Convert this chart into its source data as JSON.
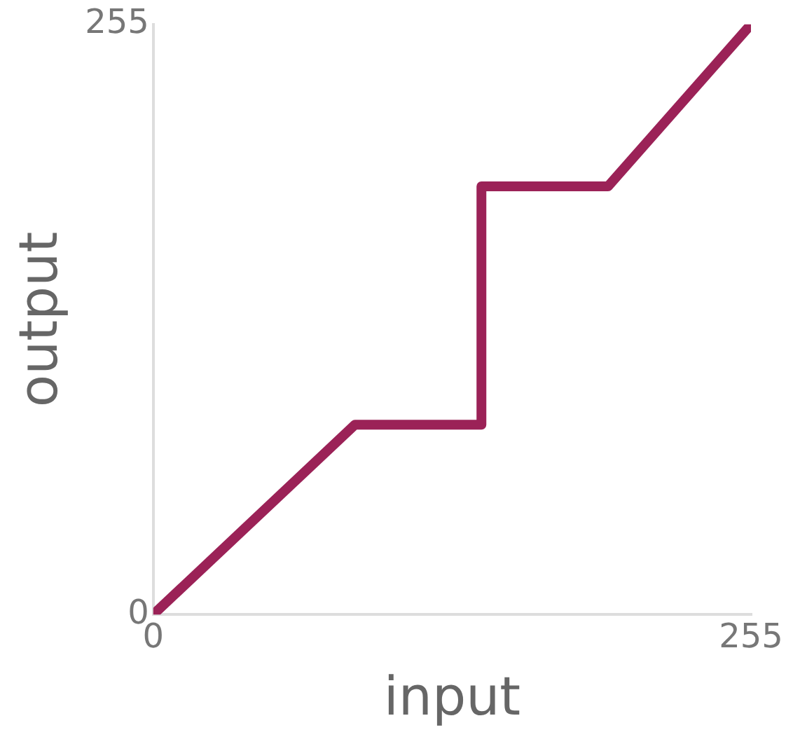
{
  "chart_data": {
    "type": "line",
    "xlabel": "input",
    "ylabel": "output",
    "x": [
      0,
      86,
      140,
      140,
      194,
      255
    ],
    "series": [
      {
        "color": "#9b2257",
        "values": [
          0,
          82,
          82,
          185,
          185,
          255
        ]
      }
    ],
    "xlim": [
      0,
      255
    ],
    "ylim": [
      0,
      255
    ],
    "xticks": [
      0,
      255
    ],
    "yticks": [
      0,
      255
    ],
    "grid": false,
    "legend": false,
    "marker": "none",
    "line_style": "solid"
  }
}
